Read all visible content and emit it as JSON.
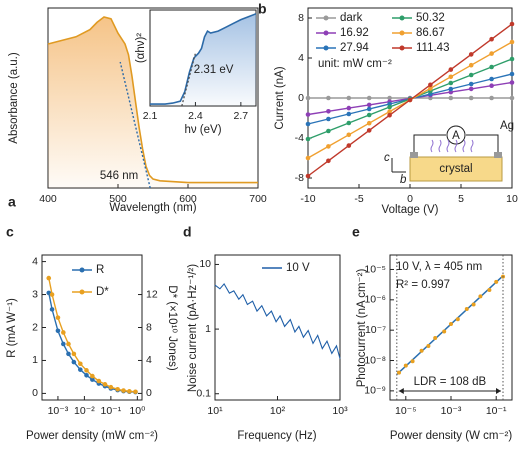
{
  "chart_data": [
    {
      "type": "area",
      "panel": "a",
      "x_label": "Wavelength (nm)",
      "y_label": "Absorbance (a.u.)",
      "color": "#e09a22",
      "x": [
        400,
        420,
        440,
        460,
        470,
        480,
        490,
        500,
        505,
        510,
        515,
        520,
        525,
        530,
        535,
        540,
        545,
        550,
        560,
        580,
        600,
        650,
        700
      ],
      "values": [
        0.8,
        0.82,
        0.84,
        0.88,
        0.92,
        0.95,
        0.94,
        0.86,
        0.83,
        0.8,
        0.74,
        0.62,
        0.48,
        0.34,
        0.22,
        0.12,
        0.07,
        0.05,
        0.04,
        0.035,
        0.03,
        0.03,
        0.03
      ],
      "xlim": [
        400,
        700
      ],
      "ylim": [
        0,
        1
      ],
      "xticks": [
        400,
        500,
        600,
        700
      ],
      "log_x": false,
      "log_y": false,
      "onset": {
        "value": 546,
        "label": "546 nm"
      },
      "onset_color": "#2c6aa8"
    },
    {
      "type": "area",
      "x_label": "hν (eV)",
      "y_label": "(αhν)²",
      "color": "#2c6aa8",
      "x": [
        2.1,
        2.2,
        2.25,
        2.3,
        2.33,
        2.36,
        2.39,
        2.42,
        2.44,
        2.46,
        2.48,
        2.5,
        2.55,
        2.6,
        2.65,
        2.7,
        2.75,
        2.8
      ],
      "values": [
        0.02,
        0.02,
        0.03,
        0.05,
        0.15,
        0.35,
        0.5,
        0.55,
        0.6,
        0.72,
        0.78,
        0.76,
        0.78,
        0.82,
        0.86,
        0.9,
        0.93,
        0.96
      ],
      "xlim": [
        2.1,
        2.8
      ],
      "ylim": [
        0,
        1
      ],
      "xticks": [
        2.1,
        2.4,
        2.7
      ],
      "log_x": false,
      "log_y": false,
      "bandgap": {
        "value": 2.31,
        "label": "2.31 eV"
      },
      "bandgap_color": "#d4900f"
    },
    {
      "type": "line",
      "panel": "b",
      "x_label": "Voltage (V)",
      "y_label": "Current (nA)",
      "unit": "unit: mW cm⁻²",
      "x": [
        -10,
        -8,
        -6,
        -4,
        -2,
        0,
        2,
        4,
        6,
        8,
        10
      ],
      "series": [
        {
          "name": "dark",
          "color": "#9a9a9a",
          "values": [
            0,
            0,
            0,
            0,
            0,
            0,
            0,
            0,
            0,
            0,
            0
          ]
        },
        {
          "name": "16.92",
          "color": "#8e3fb6",
          "values": [
            -1.65,
            -1.33,
            -1.01,
            -0.69,
            -0.37,
            -0.05,
            0.27,
            0.59,
            0.91,
            1.23,
            1.55
          ]
        },
        {
          "name": "27.94",
          "color": "#2a74b8",
          "values": [
            -2.6,
            -2.1,
            -1.6,
            -1.1,
            -0.6,
            -0.1,
            0.4,
            0.9,
            1.4,
            1.9,
            2.4
          ]
        },
        {
          "name": "50.32",
          "color": "#2e9e6a",
          "values": [
            -4.1,
            -3.3,
            -2.5,
            -1.7,
            -0.9,
            -0.1,
            0.7,
            1.5,
            2.3,
            3.1,
            3.9
          ]
        },
        {
          "name": "86.67",
          "color": "#f0a030",
          "values": [
            -6,
            -4.84,
            -3.68,
            -2.52,
            -1.36,
            -0.2,
            0.96,
            2.12,
            3.28,
            4.44,
            5.6
          ]
        },
        {
          "name": "111.43",
          "color": "#c0392b",
          "values": [
            -7.8,
            -6.28,
            -4.76,
            -3.24,
            -1.72,
            -0.2,
            1.32,
            2.84,
            4.36,
            5.88,
            7.4
          ]
        }
      ],
      "xlim": [
        -10,
        10
      ],
      "ylim": [
        -9,
        9
      ],
      "xticks": [
        -10,
        -5,
        0,
        5,
        10
      ],
      "yticks": [
        -8,
        -4,
        0,
        4,
        8
      ],
      "log_x": false,
      "log_y": false,
      "schematic": {
        "meter": "A",
        "electrode": "Ag",
        "sample": "crystal",
        "axis_c": "c",
        "axis_b": "b"
      }
    },
    {
      "type": "line",
      "panel": "c",
      "x_label": "Power density (mW cm⁻²)",
      "y_label": "R (mA W⁻¹)",
      "y2_label": "D* (×10¹⁰ Jones)",
      "x": [
        0.00045,
        0.0006,
        0.001,
        0.0016,
        0.0025,
        0.004,
        0.007,
        0.012,
        0.02,
        0.035,
        0.06,
        0.1,
        0.18,
        0.3,
        0.5,
        0.85
      ],
      "series": [
        {
          "name": "R",
          "color": "#2a6fb0",
          "values": [
            3.05,
            2.55,
            1.9,
            1.5,
            1.2,
            0.95,
            0.72,
            0.55,
            0.42,
            0.3,
            0.22,
            0.15,
            0.1,
            0.07,
            0.05,
            0.04
          ]
        },
        {
          "name": "D*",
          "color": "#e8a020",
          "axis": "y2",
          "values": [
            14,
            12,
            9.2,
            7.4,
            6,
            4.8,
            3.6,
            2.8,
            2.1,
            1.5,
            1.1,
            0.75,
            0.5,
            0.35,
            0.25,
            0.2
          ]
        }
      ],
      "xlim": [
        0.00025,
        1.5
      ],
      "ylim": [
        -0.2,
        4.2
      ],
      "y2lim": [
        -0.8,
        16.8
      ],
      "xticks": [
        {
          "value": 0.001,
          "label": "10⁻³"
        },
        {
          "value": 0.01,
          "label": "10⁻²"
        },
        {
          "value": 0.1,
          "label": "10⁻¹"
        },
        {
          "value": 1,
          "label": "10⁰"
        }
      ],
      "yticks": [
        0,
        1,
        2,
        3,
        4
      ],
      "y2ticks": [
        0,
        4,
        8,
        12
      ],
      "log_x": true,
      "log_y": false
    },
    {
      "type": "line",
      "panel": "d",
      "x_label": "Frequency (Hz)",
      "y_label": "Noise current (pA·Hz⁻¹/²)",
      "x": [
        10,
        12,
        14,
        17,
        20,
        24,
        28,
        33,
        40,
        47,
        56,
        67,
        80,
        95,
        110,
        130,
        160,
        190,
        220,
        260,
        310,
        370,
        440,
        520,
        620,
        740,
        880,
        1000
      ],
      "series": [
        {
          "name": "10 V",
          "color": "#1f5fa8",
          "values": [
            4.8,
            4.2,
            5,
            3.6,
            3.9,
            2.9,
            3.4,
            2.4,
            2.7,
            1.9,
            2.3,
            1.6,
            1.9,
            1.3,
            1.6,
            1.1,
            1.4,
            0.9,
            1.1,
            0.75,
            0.95,
            0.6,
            0.8,
            0.5,
            0.65,
            0.42,
            0.55,
            0.35
          ]
        }
      ],
      "xlim": [
        10,
        1000
      ],
      "ylim": [
        0.08,
        14
      ],
      "xticks": [
        {
          "value": 10,
          "label": "10¹"
        },
        {
          "value": 100,
          "label": "10²"
        },
        {
          "value": 1000,
          "label": "10³"
        }
      ],
      "yticks": [
        0.1,
        1,
        10
      ],
      "log_x": true,
      "log_y": true
    },
    {
      "type": "scatter",
      "panel": "e",
      "x_label": "Power density (W cm⁻²)",
      "y_label": "Photocurrent (nA cm⁻²)",
      "color": "#e8a020",
      "x": [
        5e-06,
        1e-05,
        2e-05,
        5e-05,
        0.0001,
        0.0002,
        0.0005,
        0.001,
        0.002,
        0.005,
        0.01,
        0.02,
        0.05,
        0.1,
        0.2
      ],
      "values": [
        4e-09,
        6.8e-09,
        9.5e-09,
        2.1e-08,
        3e-08,
        5.5e-08,
        9e-08,
        1.6e-07,
        2.3e-07,
        5e-07,
        7e-07,
        1.3e-06,
        2.1e-06,
        3.9e-06,
        5.8e-06
      ],
      "fit": {
        "x": [
          4e-06,
          0.2
        ],
        "values": [
          3.5e-09,
          6.2e-06
        ],
        "color": "#2a6fb0"
      },
      "xlim": [
        2e-06,
        0.5
      ],
      "ylim": [
        5e-10,
        3e-05
      ],
      "xticks": [
        {
          "value": 1e-05,
          "label": "10⁻⁵"
        },
        {
          "value": 0.001,
          "label": "10⁻³"
        },
        {
          "value": 0.1,
          "label": "10⁻¹"
        }
      ],
      "yticks": [
        {
          "value": 1e-09,
          "label": "10⁻⁹"
        },
        {
          "value": 1e-08,
          "label": "10⁻⁸"
        },
        {
          "value": 1e-07,
          "label": "10⁻⁷"
        },
        {
          "value": 1e-06,
          "label": "10⁻⁶"
        },
        {
          "value": 1e-05,
          "label": "10⁻⁵"
        }
      ],
      "log_x": true,
      "log_y": true,
      "condition": "10 V, λ = 405 nm",
      "condition_color": "#2a6fb0",
      "r_squared": "R² = 0.997",
      "ldr": "LDR = 108 dB"
    }
  ]
}
